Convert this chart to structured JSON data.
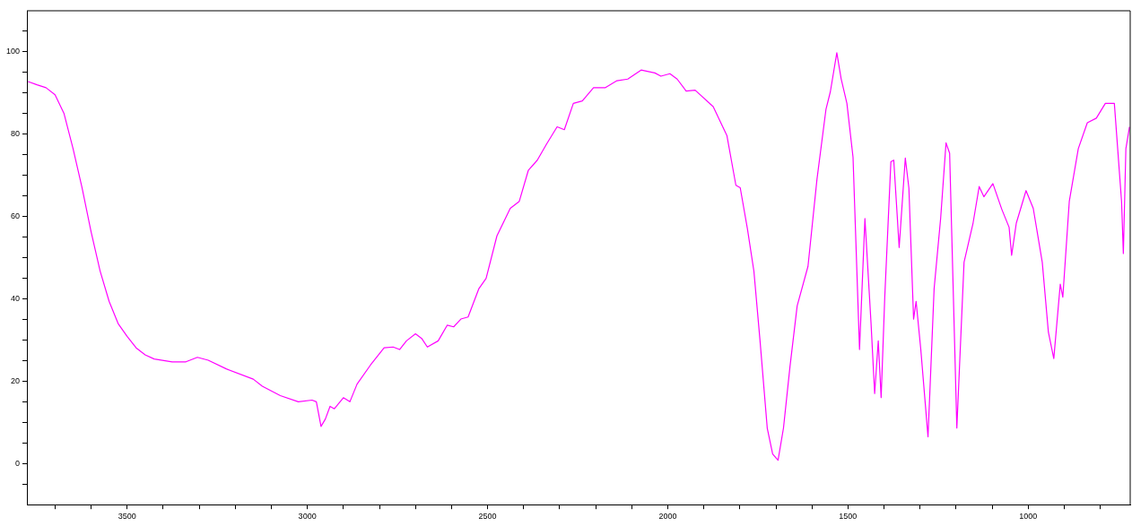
{
  "chart_data": {
    "type": "line",
    "x": [
      3775,
      3750,
      3725,
      3700,
      3675,
      3650,
      3625,
      3600,
      3575,
      3550,
      3525,
      3500,
      3475,
      3450,
      3425,
      3375,
      3337,
      3305,
      3275,
      3225,
      3150,
      3125,
      3075,
      3025,
      2987,
      2975,
      2962,
      2950,
      2937,
      2925,
      2900,
      2882,
      2862,
      2825,
      2787,
      2762,
      2744,
      2725,
      2700,
      2682,
      2667,
      2637,
      2612,
      2594,
      2574,
      2554,
      2524,
      2504,
      2474,
      2437,
      2412,
      2387,
      2362,
      2337,
      2307,
      2287,
      2262,
      2237,
      2206,
      2174,
      2141,
      2111,
      2074,
      2036,
      2019,
      1994,
      1974,
      1949,
      1924,
      1874,
      1836,
      1811,
      1799,
      1779,
      1761,
      1744,
      1724,
      1709,
      1694,
      1679,
      1661,
      1641,
      1611,
      1586,
      1561,
      1549,
      1531,
      1519,
      1503,
      1486,
      1468,
      1453,
      1436,
      1426,
      1416,
      1408,
      1398,
      1381,
      1373,
      1358,
      1341,
      1331,
      1318,
      1311,
      1298,
      1278,
      1261,
      1243,
      1228,
      1218,
      1198,
      1178,
      1153,
      1136,
      1123,
      1098,
      1073,
      1053,
      1046,
      1033,
      1006,
      986,
      961,
      944,
      929,
      911,
      904,
      886,
      861,
      836,
      811,
      786,
      761,
      741,
      736,
      729,
      719
    ],
    "series": [
      {
        "color": "#ff00ff",
        "values": [
          92.8,
          92.0,
          91.3,
          89.6,
          85.0,
          76.5,
          67.0,
          56.3,
          46.8,
          39.4,
          34.0,
          30.9,
          28.1,
          26.4,
          25.4,
          24.7,
          24.7,
          25.8,
          25.1,
          23.0,
          20.5,
          18.8,
          16.5,
          15.0,
          15.4,
          15.0,
          9.0,
          10.8,
          13.9,
          13.3,
          16.0,
          15.0,
          19.3,
          23.9,
          28.1,
          28.3,
          27.7,
          29.8,
          31.5,
          30.3,
          28.3,
          29.8,
          33.6,
          33.2,
          35.1,
          35.6,
          42.5,
          45.0,
          55.3,
          62.0,
          63.7,
          71.2,
          73.7,
          77.5,
          81.8,
          81.1,
          87.5,
          88.1,
          91.3,
          91.3,
          93.0,
          93.4,
          95.6,
          94.9,
          94.1,
          94.7,
          93.4,
          90.5,
          90.7,
          86.7,
          79.7,
          67.6,
          67.0,
          57.0,
          46.7,
          29.8,
          8.6,
          2.3,
          0.8,
          8.6,
          23.5,
          38.3,
          47.9,
          69.1,
          86.1,
          90.3,
          99.8,
          93.5,
          87.5,
          74.4,
          27.7,
          59.5,
          34.0,
          17.0,
          29.8,
          16.0,
          40.4,
          73.3,
          73.7,
          52.5,
          74.2,
          66.9,
          35.1,
          39.4,
          27.7,
          6.5,
          42.5,
          59.5,
          77.9,
          75.4,
          8.6,
          48.9,
          58.4,
          67.3,
          64.8,
          68.0,
          61.7,
          57.4,
          50.6,
          58.4,
          66.3,
          62.0,
          48.9,
          31.9,
          25.5,
          43.6,
          40.4,
          63.7,
          76.5,
          82.8,
          83.9,
          87.5,
          87.5,
          63.7,
          51.0,
          76.5,
          81.8
        ]
      }
    ],
    "xlim": [
      3778,
      717
    ],
    "xticks": [
      {
        "value": 3700,
        "label": null
      },
      {
        "value": 3600,
        "label": null
      },
      3500,
      {
        "value": 3400,
        "label": null
      },
      {
        "value": 3300,
        "label": null
      },
      {
        "value": 3200,
        "label": null
      },
      {
        "value": 3100,
        "label": null
      },
      3000,
      {
        "value": 2900,
        "label": null
      },
      {
        "value": 2800,
        "label": null
      },
      {
        "value": 2700,
        "label": null
      },
      {
        "value": 2600,
        "label": null
      },
      2500,
      {
        "value": 2400,
        "label": null
      },
      {
        "value": 2300,
        "label": null
      },
      {
        "value": 2200,
        "label": null
      },
      {
        "value": 2100,
        "label": null
      },
      2000,
      {
        "value": 1900,
        "label": null
      },
      {
        "value": 1800,
        "label": null
      },
      {
        "value": 1700,
        "label": null
      },
      {
        "value": 1600,
        "label": null
      },
      1500,
      {
        "value": 1400,
        "label": null
      },
      {
        "value": 1300,
        "label": null
      },
      {
        "value": 1200,
        "label": null
      },
      {
        "value": 1100,
        "label": null
      },
      1000,
      {
        "value": 900,
        "label": null
      },
      {
        "value": 800,
        "label": null
      }
    ],
    "ylim": [
      -10,
      110
    ],
    "yticks": [
      {
        "value": -5,
        "label": null
      },
      0,
      {
        "value": 5,
        "label": null
      },
      {
        "value": 10,
        "label": null
      },
      {
        "value": 15,
        "label": null
      },
      20,
      {
        "value": 25,
        "label": null
      },
      {
        "value": 30,
        "label": null
      },
      {
        "value": 35,
        "label": null
      },
      40,
      {
        "value": 45,
        "label": null
      },
      {
        "value": 50,
        "label": null
      },
      {
        "value": 55,
        "label": null
      },
      60,
      {
        "value": 65,
        "label": null
      },
      {
        "value": 70,
        "label": null
      },
      {
        "value": 75,
        "label": null
      },
      80,
      {
        "value": 85,
        "label": null
      },
      {
        "value": 90,
        "label": null
      },
      {
        "value": 95,
        "label": null
      },
      100,
      {
        "value": 105,
        "label": null
      }
    ],
    "grid": false,
    "legend": false,
    "marker": "none",
    "line_style": "solid"
  }
}
